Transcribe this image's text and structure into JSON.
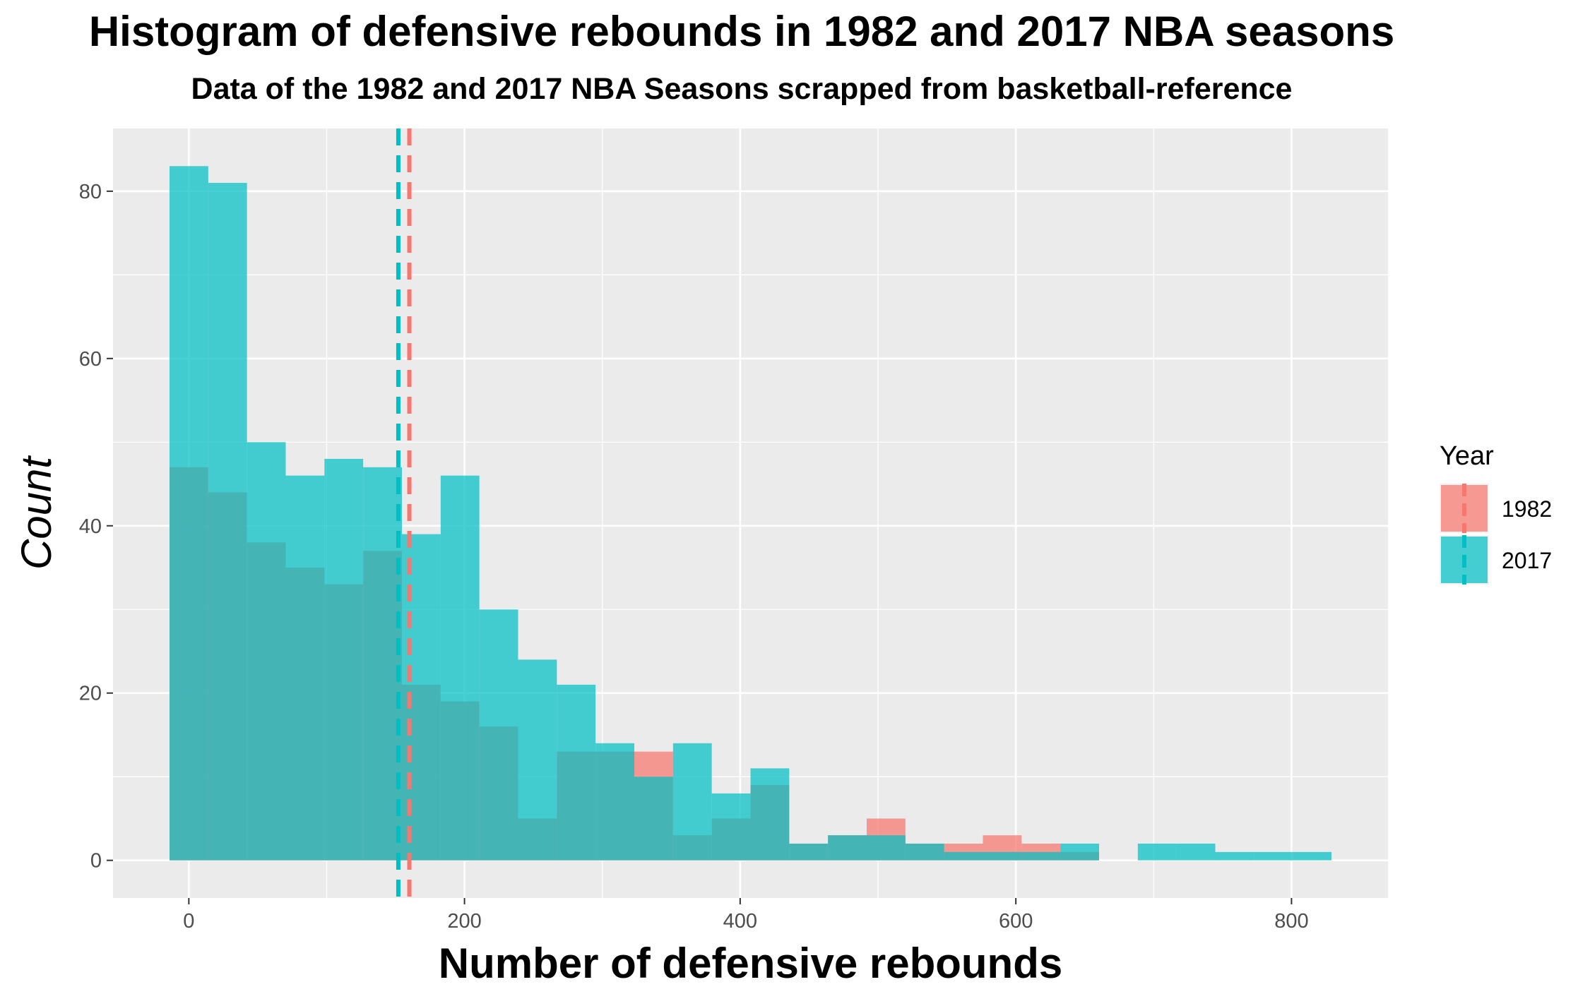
{
  "chart_data": {
    "type": "bar",
    "title": "Histogram of defensive rebounds in 1982 and 2017 NBA seasons",
    "subtitle": "Data of the 1982 and 2017 NBA Seasons scrapped from basketball-reference",
    "xlabel": "Number of defensive rebounds",
    "ylabel": "Count",
    "xlim": [
      -55,
      870
    ],
    "ylim": [
      -4.5,
      87.5
    ],
    "xticks": [
      "0",
      "200",
      "400",
      "600",
      "800"
    ],
    "yticks": [
      "0",
      "20",
      "40",
      "60",
      "80"
    ],
    "grid": true,
    "bin_width": 28.1,
    "bin_start": -14,
    "legend": {
      "title": "Year",
      "placement": "right"
    },
    "colors": {
      "1982": "#F8766D",
      "2017": "#00BFC4",
      "panel": "#EBEBEB",
      "grid": "#FFFFFF"
    },
    "series": [
      {
        "name": "1982",
        "values": [
          47,
          44,
          38,
          35,
          33,
          37,
          21,
          19,
          16,
          5,
          13,
          13,
          13,
          3,
          5,
          9,
          2,
          3,
          5,
          2,
          2,
          3,
          2,
          1,
          0,
          0,
          0,
          0,
          0,
          0
        ],
        "mean": 160
      },
      {
        "name": "2017",
        "values": [
          83,
          81,
          50,
          46,
          48,
          47,
          39,
          46,
          30,
          24,
          21,
          14,
          10,
          14,
          8,
          11,
          2,
          3,
          3,
          2,
          1,
          1,
          1,
          2,
          0,
          2,
          2,
          1,
          1,
          1
        ],
        "mean": 152
      }
    ]
  }
}
